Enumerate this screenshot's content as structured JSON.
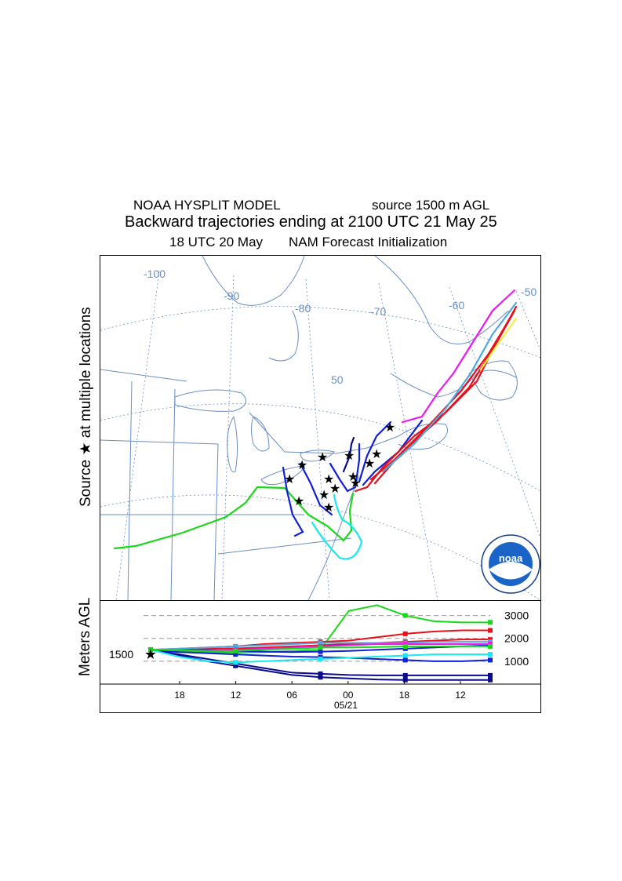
{
  "header": {
    "model": "NOAA HYSPLIT MODEL",
    "source": "source 1500 m AGL",
    "title": "Backward trajectories ending at 2100 UTC 21 May 25",
    "init_time": "18 UTC 20 May",
    "init_model": "NAM   Forecast Initialization"
  },
  "map": {
    "y_axis_label": "Source ★  at multiple locations",
    "lon_labels": [
      "-100",
      "-90",
      "-80",
      "-70",
      "-60",
      "-50"
    ],
    "lat_labels": [
      "50"
    ],
    "logo_text": "noaa"
  },
  "chart_data": {
    "type": "line",
    "ylabel": "Meters AGL",
    "source_height": "1500",
    "x_ticks": [
      "18",
      "12",
      "06",
      "00",
      "18",
      "12"
    ],
    "x_date_label": "05/21",
    "y_ticks": [
      "1000",
      "2000",
      "3000"
    ],
    "ylim": [
      0,
      3500
    ],
    "colors": {
      "red": "#e8101a",
      "blue": "#1020d8",
      "navy": "#0a0a90",
      "green": "#18d818",
      "cyan": "#18e8f0",
      "magenta": "#f018f0",
      "skyblue": "#50a8e0",
      "yellow": "#f8f040"
    },
    "series": [
      {
        "color": "green",
        "values": [
          1500,
          1450,
          1400,
          1380,
          1400,
          1450,
          1500,
          3200,
          3450,
          3000,
          2750,
          2700,
          2700
        ]
      },
      {
        "color": "red",
        "values": [
          1500,
          1550,
          1600,
          1650,
          1750,
          1800,
          1850,
          1900,
          2050,
          2200,
          2300,
          2350,
          2350
        ]
      },
      {
        "color": "red",
        "values": [
          1500,
          1520,
          1540,
          1560,
          1600,
          1650,
          1700,
          1750,
          1800,
          1850,
          1900,
          1950,
          1950
        ]
      },
      {
        "color": "blue",
        "values": [
          1500,
          1500,
          1480,
          1450,
          1420,
          1400,
          1420,
          1450,
          1500,
          1550,
          1600,
          1650,
          1700
        ]
      },
      {
        "color": "blue",
        "values": [
          1500,
          1400,
          1350,
          1300,
          1250,
          1200,
          1180,
          1150,
          1100,
          1050,
          1000,
          1000,
          1050
        ]
      },
      {
        "color": "navy",
        "values": [
          1500,
          1300,
          1100,
          900,
          700,
          500,
          450,
          400,
          380,
          380,
          380,
          380,
          380
        ]
      },
      {
        "color": "navy",
        "values": [
          1500,
          1250,
          1000,
          800,
          600,
          400,
          300,
          250,
          200,
          180,
          180,
          180,
          180
        ]
      },
      {
        "color": "cyan",
        "values": [
          1500,
          1200,
          1000,
          950,
          1000,
          1050,
          1100,
          1150,
          1200,
          1250,
          1300,
          1300,
          1300
        ]
      },
      {
        "color": "skyblue",
        "values": [
          1500,
          1550,
          1600,
          1650,
          1700,
          1750,
          1800,
          1800,
          1800,
          1800,
          1850,
          1850,
          1850
        ]
      },
      {
        "color": "magenta",
        "values": [
          1500,
          1480,
          1460,
          1500,
          1550,
          1600,
          1650,
          1700,
          1750,
          1750,
          1750,
          1750,
          1750
        ]
      },
      {
        "color": "green",
        "values": [
          1500,
          1480,
          1450,
          1450,
          1500,
          1550,
          1600,
          1600,
          1620,
          1650,
          1650,
          1650,
          1650
        ]
      }
    ]
  }
}
